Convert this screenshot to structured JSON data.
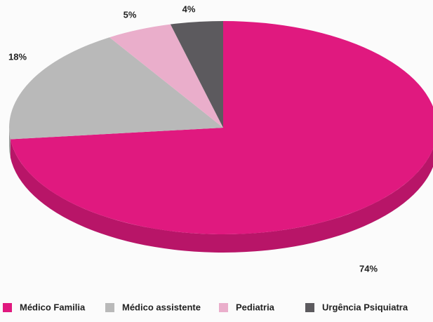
{
  "chart_data": {
    "type": "pie",
    "categories": [
      "Médico Familia",
      "Médico assistente",
      "Pediatria",
      "Urgência Psiquiatra"
    ],
    "values": [
      74,
      18,
      5,
      4
    ],
    "value_labels": [
      "74%",
      "18%",
      "5%",
      "4%"
    ],
    "colors": [
      "#e0197f",
      "#b9b9b9",
      "#eaaecb",
      "#5c5a5e"
    ],
    "legend": "bottom"
  }
}
